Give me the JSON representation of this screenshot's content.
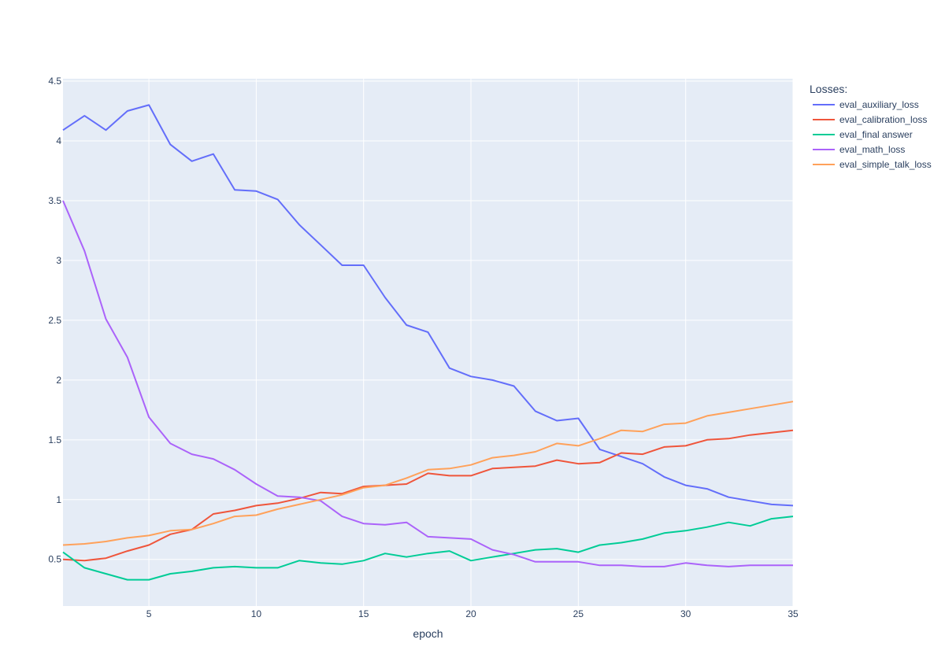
{
  "chart_data": {
    "type": "line",
    "xlabel": "epoch",
    "ylabel": "",
    "xlim": [
      1,
      35
    ],
    "ylim": [
      0.11,
      4.52
    ],
    "x_ticks": [
      5,
      10,
      15,
      20,
      25,
      30,
      35
    ],
    "y_ticks": [
      0.5,
      1,
      1.5,
      2,
      2.5,
      3,
      3.5,
      4,
      4.5
    ],
    "grid": true,
    "legend_title": "Losses:",
    "legend_position": "top-right, outside plot",
    "plot_background": "#e5ecf6",
    "x": [
      1,
      2,
      3,
      4,
      5,
      6,
      7,
      8,
      9,
      10,
      11,
      12,
      13,
      14,
      15,
      16,
      17,
      18,
      19,
      20,
      21,
      22,
      23,
      24,
      25,
      26,
      27,
      28,
      29,
      30,
      31,
      32,
      33,
      34,
      35
    ],
    "series": [
      {
        "name": "eval_auxiliary_loss",
        "color": "#636efa",
        "values": [
          4.09,
          4.21,
          4.09,
          4.25,
          4.3,
          3.97,
          3.83,
          3.89,
          3.59,
          3.58,
          3.51,
          3.3,
          3.13,
          2.96,
          2.96,
          2.69,
          2.46,
          2.4,
          2.1,
          2.03,
          2.0,
          1.95,
          1.74,
          1.66,
          1.68,
          1.42,
          1.36,
          1.3,
          1.19,
          1.12,
          1.09,
          1.02,
          0.99,
          0.96,
          0.95
        ]
      },
      {
        "name": "eval_calibration_loss",
        "color": "#ef553b",
        "values": [
          0.5,
          0.49,
          0.51,
          0.57,
          0.62,
          0.71,
          0.75,
          0.88,
          0.91,
          0.95,
          0.97,
          1.01,
          1.06,
          1.05,
          1.11,
          1.12,
          1.13,
          1.22,
          1.2,
          1.2,
          1.26,
          1.27,
          1.28,
          1.33,
          1.3,
          1.31,
          1.39,
          1.38,
          1.44,
          1.45,
          1.5,
          1.51,
          1.54,
          1.56,
          1.58
        ]
      },
      {
        "name": "eval_final answer",
        "color": "#00cc96",
        "values": [
          0.56,
          0.43,
          0.38,
          0.33,
          0.33,
          0.38,
          0.4,
          0.43,
          0.44,
          0.43,
          0.43,
          0.49,
          0.47,
          0.46,
          0.49,
          0.55,
          0.52,
          0.55,
          0.57,
          0.49,
          0.52,
          0.55,
          0.58,
          0.59,
          0.56,
          0.62,
          0.64,
          0.67,
          0.72,
          0.74,
          0.77,
          0.81,
          0.78,
          0.84,
          0.86
        ]
      },
      {
        "name": "eval_math_loss",
        "color": "#ab63fa",
        "values": [
          3.5,
          3.08,
          2.51,
          2.19,
          1.69,
          1.47,
          1.38,
          1.34,
          1.25,
          1.13,
          1.03,
          1.02,
          0.99,
          0.86,
          0.8,
          0.79,
          0.81,
          0.69,
          0.68,
          0.67,
          0.58,
          0.54,
          0.48,
          0.48,
          0.48,
          0.45,
          0.45,
          0.44,
          0.44,
          0.47,
          0.45,
          0.44,
          0.45,
          0.45,
          0.45
        ]
      },
      {
        "name": "eval_simple_talk_loss",
        "color": "#ffa15a",
        "values": [
          0.62,
          0.63,
          0.65,
          0.68,
          0.7,
          0.74,
          0.75,
          0.8,
          0.86,
          0.87,
          0.92,
          0.96,
          1.0,
          1.04,
          1.1,
          1.12,
          1.18,
          1.25,
          1.26,
          1.29,
          1.35,
          1.37,
          1.4,
          1.47,
          1.45,
          1.51,
          1.58,
          1.57,
          1.63,
          1.64,
          1.7,
          1.73,
          1.76,
          1.79,
          1.82
        ]
      }
    ]
  }
}
